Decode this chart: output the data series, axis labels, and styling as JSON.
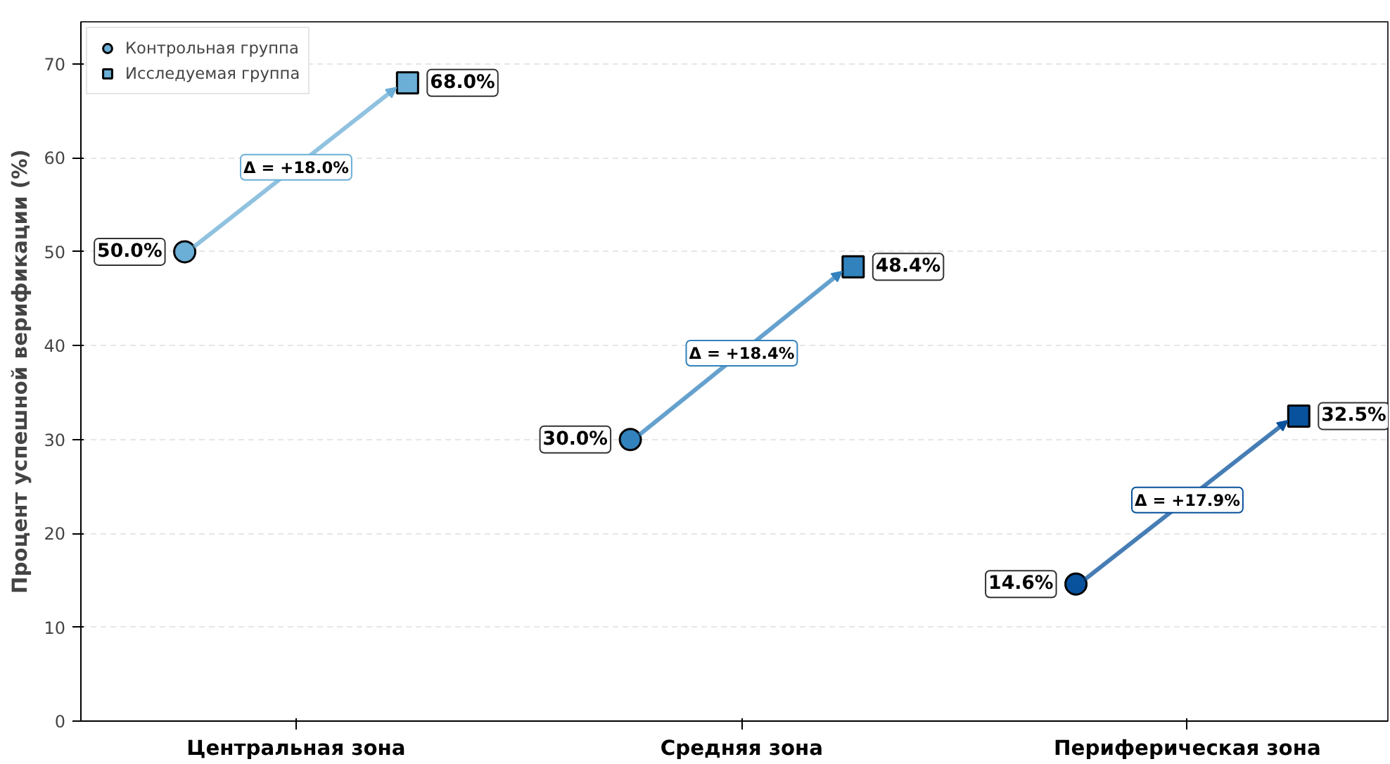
{
  "chart_data": {
    "type": "scatter",
    "categories": [
      "Центральная зона",
      "Средняя зона",
      "Периферическая зона"
    ],
    "ylabel": "Процент успешной верификации (%)",
    "ylim": [
      0,
      74.5
    ],
    "yticks": [
      0,
      10,
      20,
      30,
      40,
      50,
      60,
      70
    ],
    "grid": "y",
    "legend": "top left",
    "series": [
      {
        "name": "Контрольная группа",
        "marker": "circle",
        "colors": [
          "#6baed6",
          "#3182bd",
          "#08519c"
        ],
        "values": [
          50.0,
          30.0,
          14.6
        ],
        "value_labels": [
          "50.0%",
          "30.0%",
          "14.6%"
        ]
      },
      {
        "name": "Исследуемая группа",
        "marker": "square",
        "colors": [
          "#6baed6",
          "#3182bd",
          "#08519c"
        ],
        "values": [
          68.0,
          48.4,
          32.5
        ],
        "value_labels": [
          "68.0%",
          "48.4%",
          "32.5%"
        ]
      }
    ],
    "annotations": [
      "Δ = +18.0%",
      "Δ = +18.4%",
      "Δ = +17.9%"
    ]
  }
}
